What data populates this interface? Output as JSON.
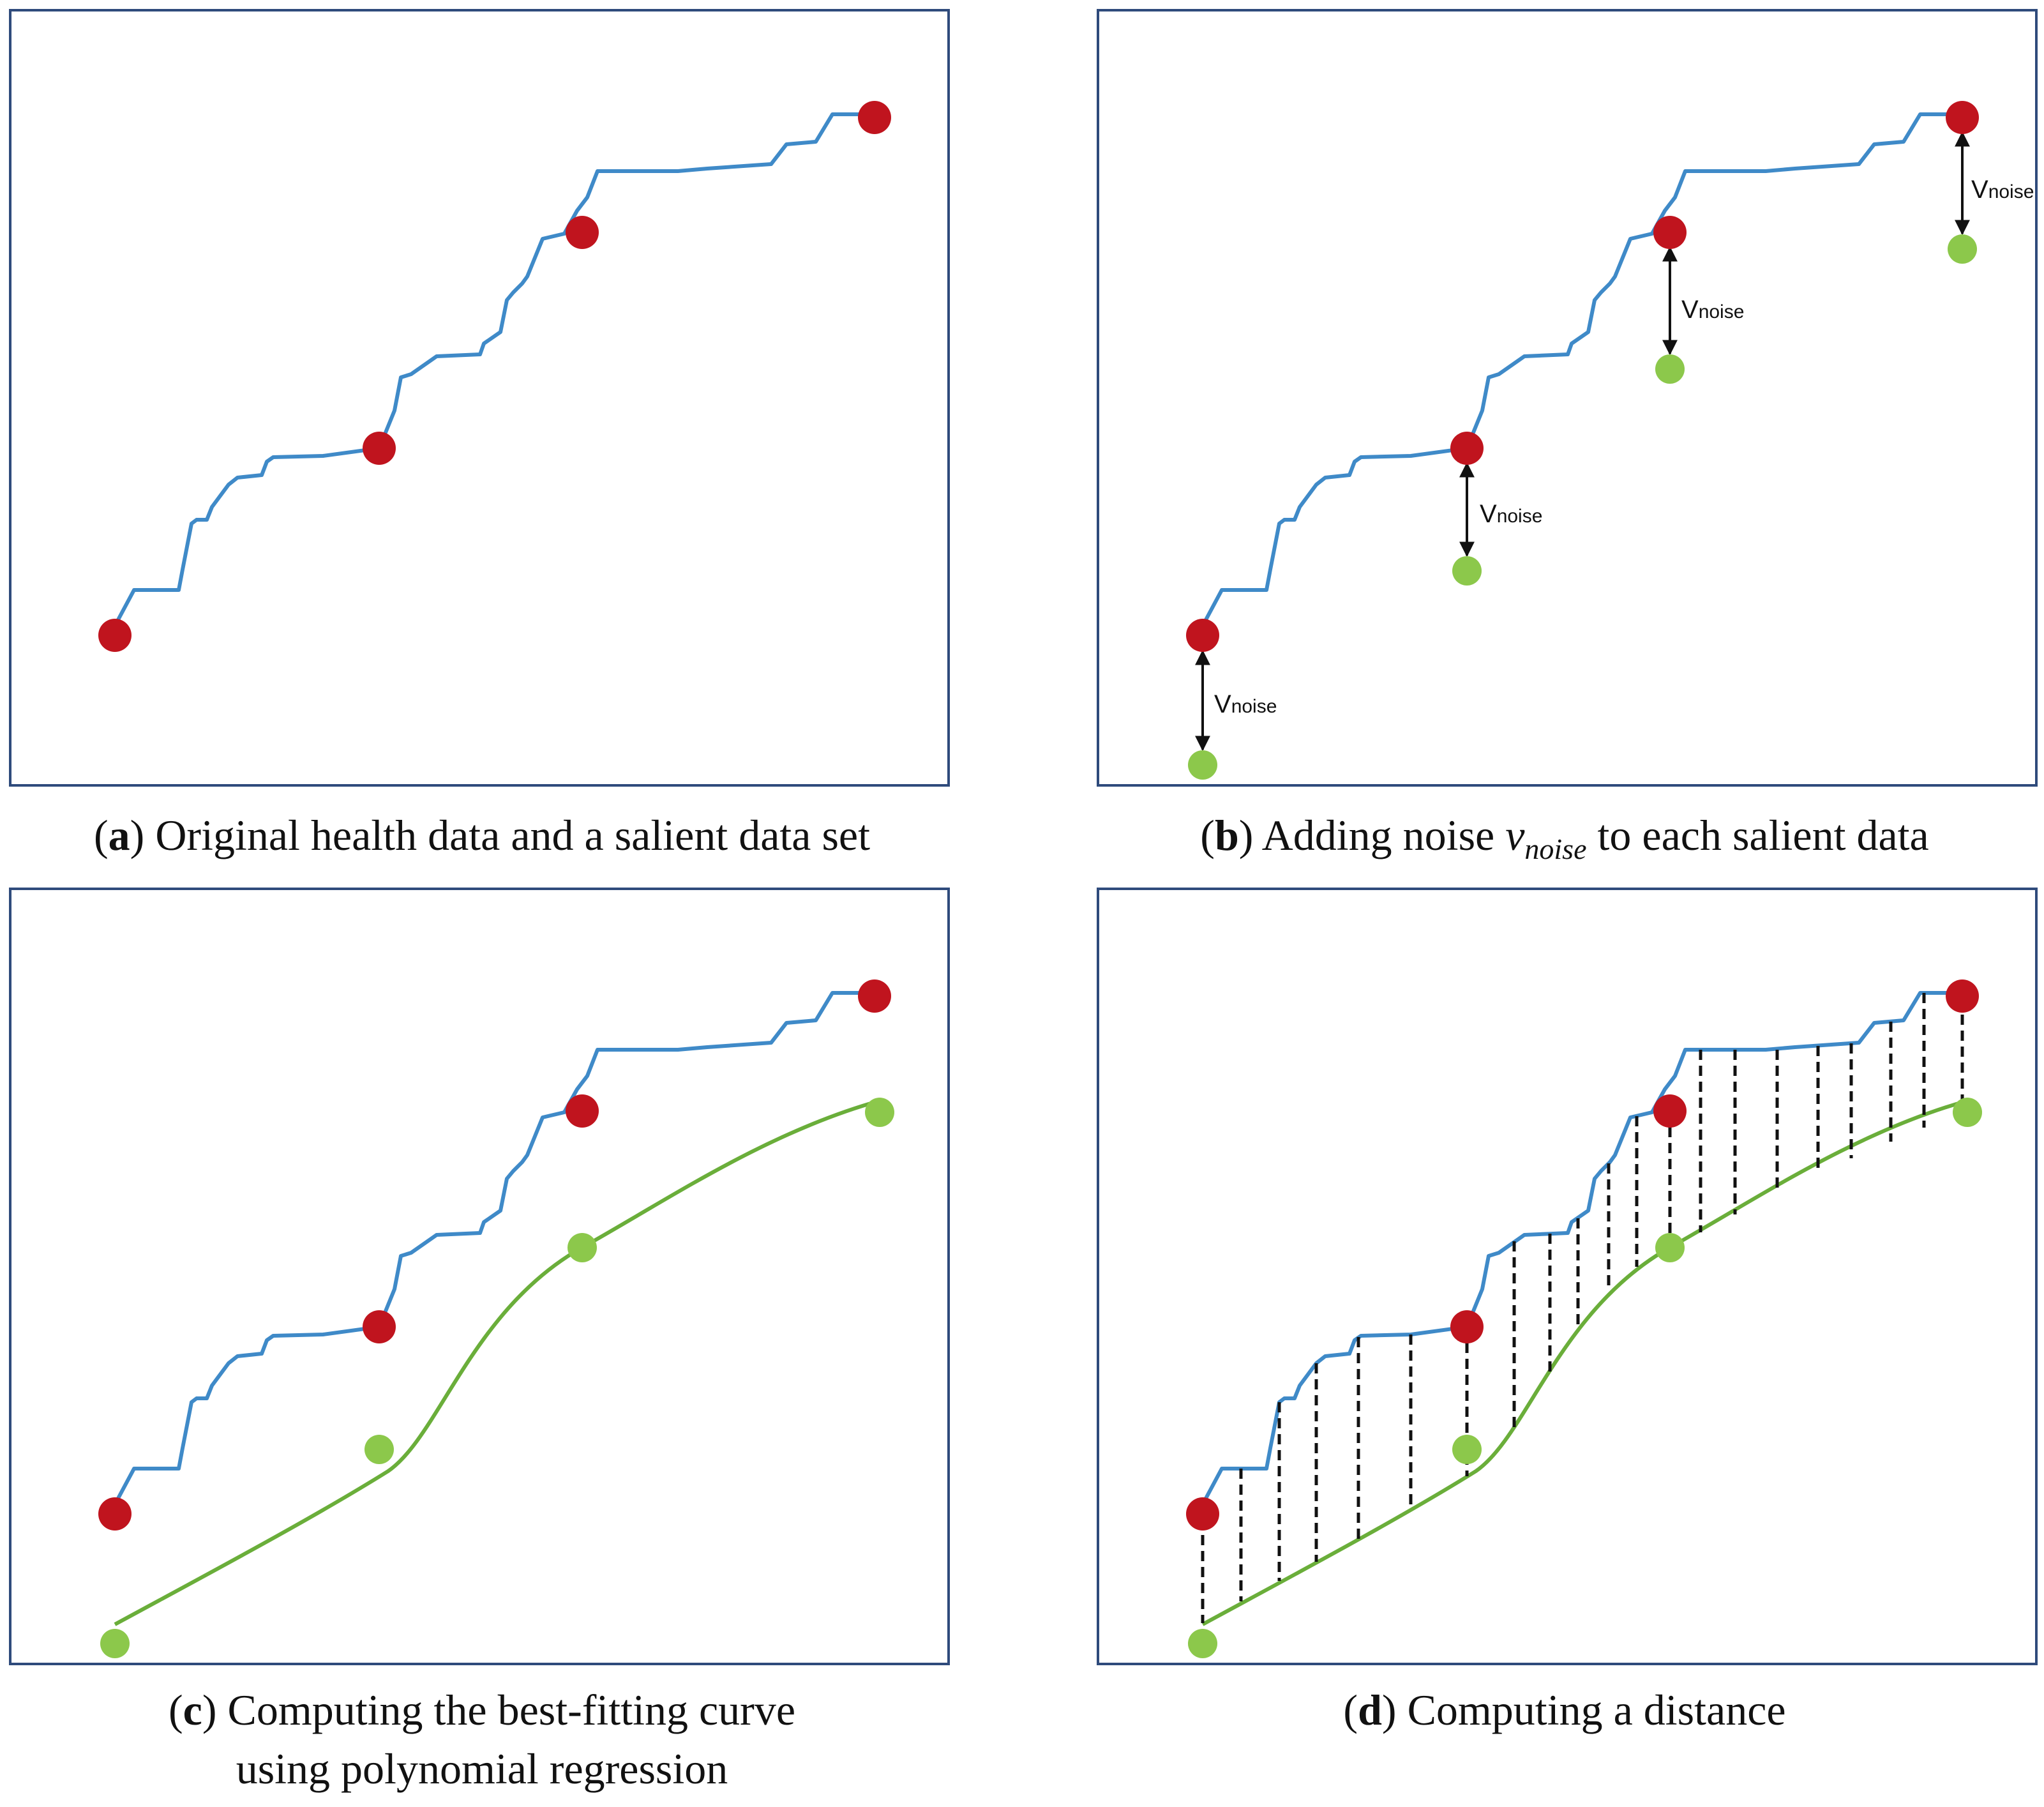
{
  "panels": {
    "a": {
      "letter": "a",
      "caption": "Original health data and a salient data set"
    },
    "b": {
      "letter": "b",
      "caption_before": "Adding noise ",
      "var_main": "v",
      "var_sub": "noise",
      "caption_after": " to each salient data",
      "noise_label_main": "V",
      "noise_label_sub": "noise"
    },
    "c": {
      "letter": "c",
      "caption_line1": "Computing the best-fitting curve",
      "caption_line2": "using polynomial regression"
    },
    "d": {
      "letter": "d",
      "caption": "Computing a distance"
    }
  },
  "colors": {
    "health_line": "#3f8ac8",
    "salient_point": "#c0141e",
    "noisy_point": "#8cc84b",
    "fit_curve": "#6aae3a",
    "frame": "#2f4b7c",
    "arrow": "#111111"
  }
}
